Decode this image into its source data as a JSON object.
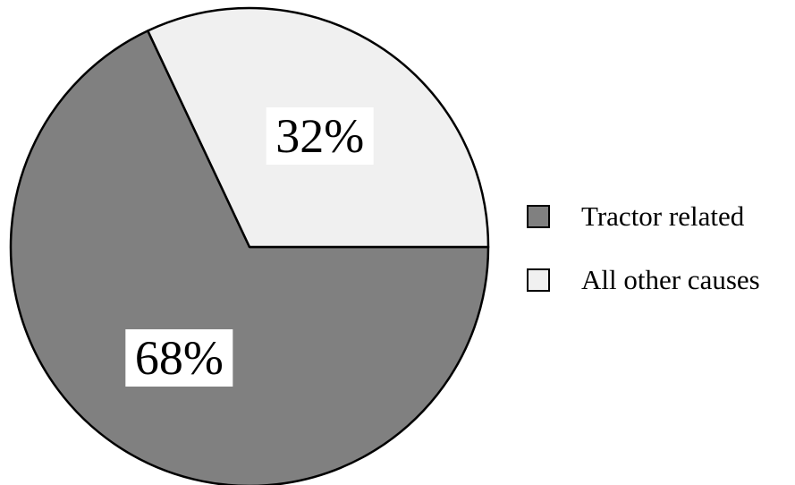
{
  "chart_data": {
    "type": "pie",
    "title": "",
    "slices": [
      {
        "label": "Tractor related",
        "value": 68,
        "display": "68%",
        "color": "#808080"
      },
      {
        "label": "All other causes",
        "value": 32,
        "display": "32%",
        "color": "#f0f0f0"
      }
    ],
    "start_angle_deg": 0,
    "direction": "clockwise",
    "legend": {
      "position": "right",
      "items": [
        {
          "label": "Tractor related",
          "color": "#808080"
        },
        {
          "label": "All other causes",
          "color": "#f0f0f0"
        }
      ]
    }
  }
}
